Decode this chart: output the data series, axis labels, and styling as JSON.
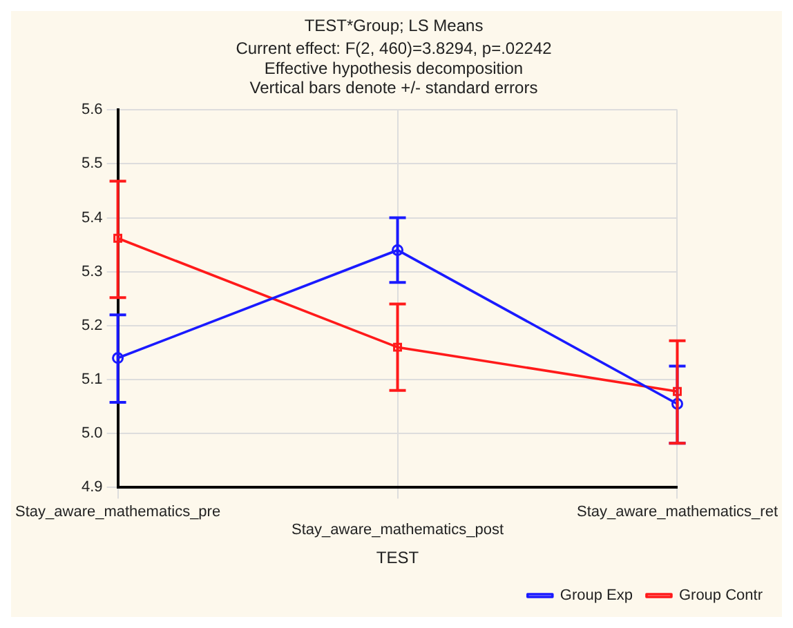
{
  "chart_data": {
    "type": "line",
    "title": "TEST*Group; LS Means",
    "subtitle": "Current effect: F(2, 460)=3.8294, p=.02242",
    "annotations": [
      "Effective hypothesis decomposition",
      "Vertical bars denote +/- standard errors"
    ],
    "xlabel": "TEST",
    "categories": [
      "Stay_aware_mathematics_pre",
      "Stay_aware_mathematics_post",
      "Stay_aware_mathematics_ret"
    ],
    "series": [
      {
        "name": "Group Exp",
        "color": "#1a1aff",
        "marker": "circle",
        "values": [
          5.14,
          5.34,
          5.055
        ],
        "errors": [
          [
            5.058,
            5.22
          ],
          [
            5.28,
            5.4
          ],
          [
            4.982,
            5.125
          ]
        ]
      },
      {
        "name": "Group Contr",
        "color": "#ff1a1a",
        "marker": "square",
        "values": [
          5.362,
          5.16,
          5.078
        ],
        "errors": [
          [
            5.252,
            5.468
          ],
          [
            5.08,
            5.24
          ],
          [
            4.982,
            5.172
          ]
        ]
      }
    ],
    "ylim": [
      4.9,
      5.6
    ],
    "yticks": [
      {
        "value": 4.9,
        "label": "4.9"
      },
      {
        "value": 5,
        "label": "5.0"
      },
      5.1,
      5.2,
      5.3,
      5.4,
      5.5,
      5.6
    ],
    "grid": true,
    "legend": "bottom right",
    "line_style": "solid"
  }
}
